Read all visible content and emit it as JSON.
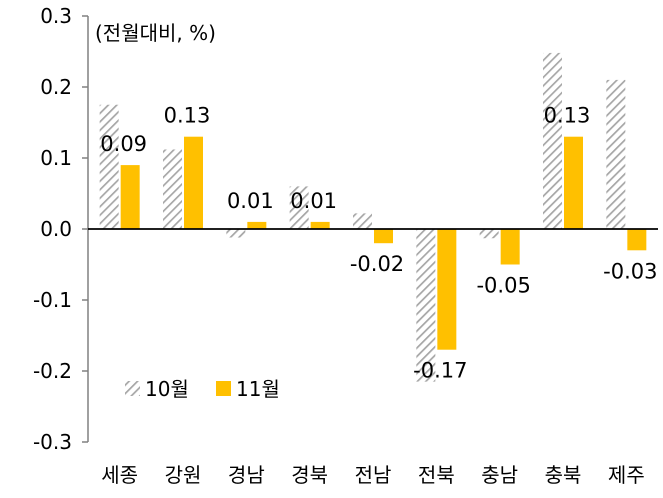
{
  "chart_data": {
    "type": "bar",
    "unit_label": "(전월대비, %)",
    "categories": [
      "세종",
      "강원",
      "경남",
      "경북",
      "전남",
      "전북",
      "충남",
      "충북",
      "제주"
    ],
    "series": [
      {
        "name": "10월",
        "values": [
          0.175,
          0.112,
          -0.012,
          0.06,
          0.022,
          -0.215,
          -0.013,
          0.248,
          0.21
        ],
        "pattern": "hatched",
        "color": "#a6a6a6"
      },
      {
        "name": "11월",
        "values": [
          0.09,
          0.13,
          0.01,
          0.01,
          -0.02,
          -0.17,
          -0.05,
          0.13,
          -0.03
        ],
        "data_labels": [
          "0.09",
          "0.13",
          "0.01",
          "0.01",
          "-0.02",
          "-0.17",
          "-0.05",
          "0.13",
          "-0.03"
        ],
        "color": "#ffc000"
      }
    ],
    "yticks": [
      "0.3",
      "0.2",
      "0.1",
      "0.0",
      "-0.1",
      "-0.2",
      "-0.3"
    ],
    "ylim": [
      -0.3,
      0.3
    ],
    "grid": false,
    "legend_position": "bottom-left"
  }
}
